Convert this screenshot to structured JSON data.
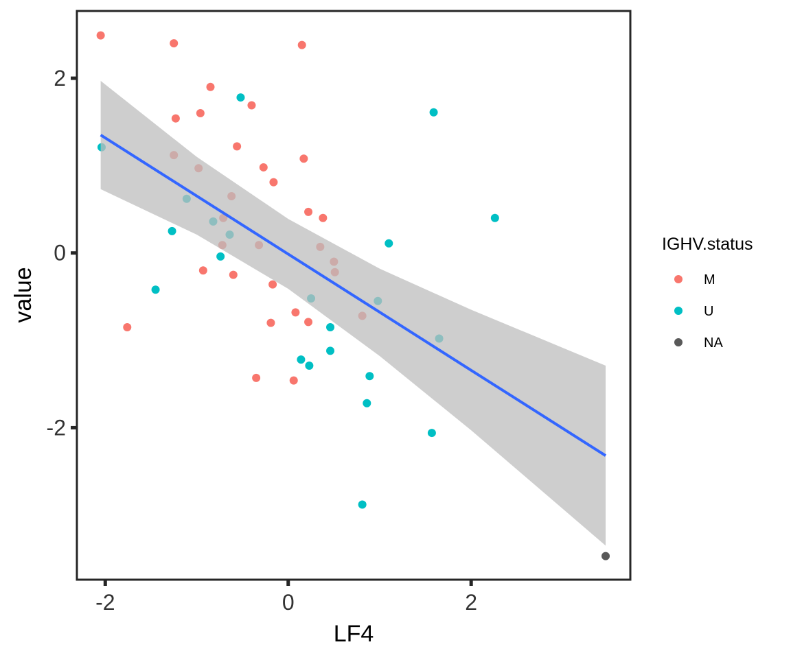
{
  "chart_data": {
    "type": "scatter",
    "title": "",
    "xlabel": "LF4",
    "ylabel": "value",
    "xlim": [
      -2.31,
      3.74
    ],
    "ylim": [
      -3.74,
      2.77
    ],
    "xticks": [
      -2,
      0,
      2
    ],
    "yticks": [
      -2,
      0,
      2
    ],
    "xtick_labels": [
      "-2",
      "0",
      "2"
    ],
    "ytick_labels": [
      "-2",
      "0",
      "2"
    ],
    "grid": false,
    "legend": {
      "title": "IGHV.status",
      "placement": "right",
      "entries": [
        {
          "label": "M",
          "color": "#F8766D"
        },
        {
          "label": "U",
          "color": "#00BFC4"
        },
        {
          "label": "NA",
          "color": "#595959"
        }
      ]
    },
    "series": [
      {
        "name": "M",
        "color": "#F8766D",
        "points": [
          [
            -2.05,
            2.49
          ],
          [
            -1.25,
            2.4
          ],
          [
            0.15,
            2.38
          ],
          [
            -0.85,
            1.9
          ],
          [
            -0.4,
            1.69
          ],
          [
            -0.96,
            1.6
          ],
          [
            -1.23,
            1.54
          ],
          [
            -0.56,
            1.22
          ],
          [
            -1.25,
            1.12
          ],
          [
            -0.98,
            0.97
          ],
          [
            0.17,
            1.08
          ],
          [
            -0.27,
            0.98
          ],
          [
            -0.16,
            0.81
          ],
          [
            -0.62,
            0.65
          ],
          [
            0.22,
            0.47
          ],
          [
            0.38,
            0.4
          ],
          [
            -0.71,
            0.4
          ],
          [
            -0.72,
            0.09
          ],
          [
            -0.32,
            0.09
          ],
          [
            0.35,
            0.07
          ],
          [
            0.5,
            -0.1
          ],
          [
            0.51,
            -0.22
          ],
          [
            -0.93,
            -0.2
          ],
          [
            -0.6,
            -0.25
          ],
          [
            -0.17,
            -0.36
          ],
          [
            0.08,
            -0.68
          ],
          [
            0.22,
            -0.79
          ],
          [
            -0.19,
            -0.8
          ],
          [
            0.81,
            -0.72
          ],
          [
            -1.76,
            -0.85
          ],
          [
            -0.35,
            -1.43
          ],
          [
            0.06,
            -1.46
          ]
        ]
      },
      {
        "name": "U",
        "color": "#00BFC4",
        "points": [
          [
            -2.04,
            1.21
          ],
          [
            -0.52,
            1.78
          ],
          [
            1.59,
            1.61
          ],
          [
            -1.11,
            0.62
          ],
          [
            -0.82,
            0.36
          ],
          [
            -0.64,
            0.21
          ],
          [
            -1.27,
            0.25
          ],
          [
            2.26,
            0.4
          ],
          [
            1.1,
            0.11
          ],
          [
            -0.74,
            -0.04
          ],
          [
            -1.45,
            -0.42
          ],
          [
            0.25,
            -0.52
          ],
          [
            0.98,
            -0.55
          ],
          [
            0.46,
            -0.85
          ],
          [
            1.65,
            -0.98
          ],
          [
            0.46,
            -1.12
          ],
          [
            0.14,
            -1.22
          ],
          [
            0.23,
            -1.29
          ],
          [
            0.89,
            -1.41
          ],
          [
            0.86,
            -1.72
          ],
          [
            1.57,
            -2.06
          ],
          [
            0.81,
            -2.88
          ]
        ]
      },
      {
        "name": "NA",
        "color": "#595959",
        "points": [
          [
            3.47,
            -3.47
          ]
        ]
      }
    ],
    "smooth": {
      "method": "lm",
      "color": "#3366FF",
      "band_color": "#BEBEBE",
      "x": [
        -2.05,
        -1,
        0,
        1,
        2,
        3.47
      ],
      "y": [
        1.35,
        0.652,
        -0.013,
        -0.678,
        -1.343,
        -2.32
      ],
      "upper": [
        1.97,
        1.1,
        0.39,
        -0.18,
        -0.65,
        -1.29
      ],
      "lower": [
        0.73,
        0.21,
        -0.41,
        -1.18,
        -2.03,
        -3.35
      ]
    }
  }
}
